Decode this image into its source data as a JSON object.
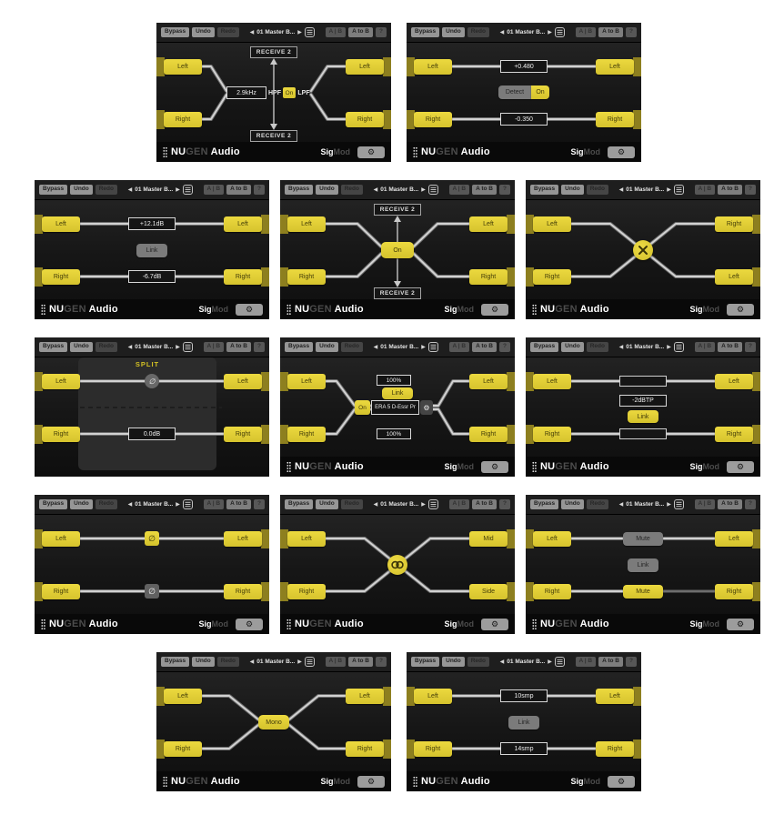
{
  "app": {
    "name_prefix": "NU",
    "name_mid": "GEN",
    "name_audio": " Audio",
    "product_sig": "Sig",
    "product_mod": "Mod"
  },
  "toolbar": {
    "bypass": "Bypass",
    "undo": "Undo",
    "redo": "Redo",
    "preset_prev": "◀",
    "preset": "01 Master B...",
    "preset_next": "▶",
    "ab": "A | B",
    "a_to_b": "A to B",
    "help": "?"
  },
  "icons": {
    "gear": "⚙"
  },
  "colors": {
    "accent_yellow": "#e2ce33",
    "panel_bg": "#161616",
    "line": "#d2d2d2"
  },
  "panels": [
    {
      "type": "hpf_lpf",
      "in": [
        "Left",
        "Right"
      ],
      "out": [
        "Left",
        "Right"
      ],
      "receive_top": "RECEIVE 2",
      "receive_bottom": "RECEIVE 2",
      "freq": "2.9kHz",
      "hpf_label": "HPF",
      "on_label": "On",
      "lpf_label": "LPF"
    },
    {
      "type": "offset",
      "in": [
        "Left",
        "Right"
      ],
      "out": [
        "Left",
        "Right"
      ],
      "top_value": "+0.480",
      "detect_label": "Detect",
      "on_label": "On",
      "bottom_value": "-0.350"
    },
    {
      "type": "gain",
      "in": [
        "Left",
        "Right"
      ],
      "out": [
        "Left",
        "Right"
      ],
      "top_value": "+12.1dB",
      "link_label": "Link",
      "bottom_value": "-6.7dB"
    },
    {
      "type": "receive",
      "in": [
        "Left",
        "Right"
      ],
      "out": [
        "Left",
        "Right"
      ],
      "receive_top": "RECEIVE 2",
      "receive_bottom": "RECEIVE 2",
      "on_label": "On"
    },
    {
      "type": "swap",
      "in": [
        "Left",
        "Right"
      ],
      "out": [
        "Right",
        "Left"
      ]
    },
    {
      "type": "split",
      "in": [
        "Left",
        "Right"
      ],
      "out": [
        "Left",
        "Right"
      ],
      "title": "SPLIT",
      "phase_symbol": "∅",
      "bottom_value": "0.0dB"
    },
    {
      "type": "insert",
      "in": [
        "Left",
        "Right"
      ],
      "out": [
        "Left",
        "Right"
      ],
      "top_value": "100%",
      "link_label": "Link",
      "on_label": "On",
      "plugin_name": "ERA 5 D-Essr Pr",
      "bottom_value": "100%"
    },
    {
      "type": "protect",
      "in": [
        "Left",
        "Right"
      ],
      "out": [
        "Left",
        "Right"
      ],
      "value": "-2dBTP",
      "link_label": "Link"
    },
    {
      "type": "phase",
      "in": [
        "Left",
        "Right"
      ],
      "out": [
        "Left",
        "Right"
      ],
      "phase_top": "∅",
      "phase_bottom": "∅"
    },
    {
      "type": "ms",
      "in": [
        "Left",
        "Right"
      ],
      "out": [
        "Mid",
        "Side"
      ]
    },
    {
      "type": "mute",
      "in": [
        "Left",
        "Right"
      ],
      "out": [
        "Left",
        "Right"
      ],
      "mute_top": "Mute",
      "link_label": "Link",
      "mute_bottom": "Mute"
    },
    {
      "type": "mono",
      "in": [
        "Left",
        "Right"
      ],
      "out": [
        "Left",
        "Right"
      ],
      "mono_label": "Mono"
    },
    {
      "type": "delay",
      "in": [
        "Left",
        "Right"
      ],
      "out": [
        "Left",
        "Right"
      ],
      "top_value": "10smp",
      "link_label": "Link",
      "bottom_value": "14smp"
    }
  ]
}
